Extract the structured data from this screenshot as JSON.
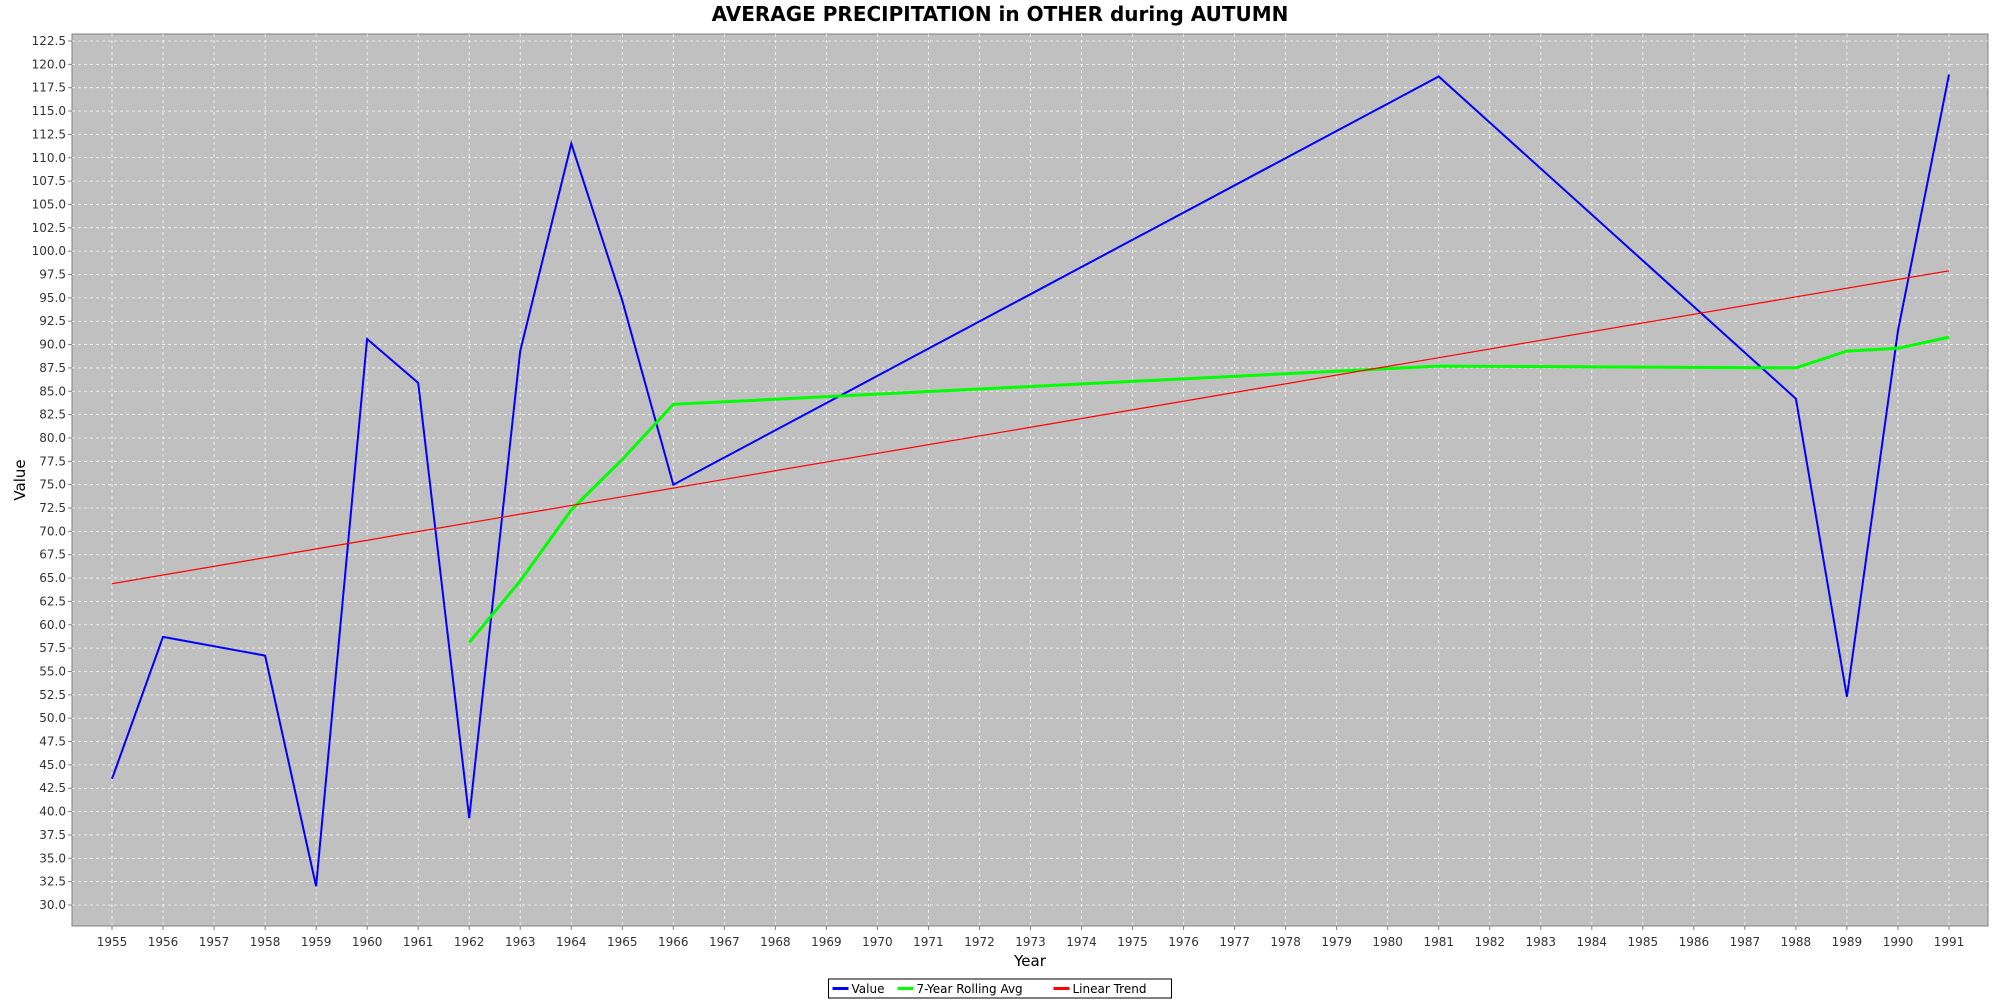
{
  "chart_data": {
    "type": "line",
    "title": "AVERAGE PRECIPITATION in OTHER during AUTUMN",
    "xlabel": "Year",
    "ylabel": "Value",
    "xlim": [
      1955,
      1991
    ],
    "ylim": [
      30.0,
      122.5
    ],
    "y_tick_step": 2.5,
    "grid": true,
    "legend_position": "bottom-center",
    "background_color": "#c0c0c0",
    "series": [
      {
        "name": "Value",
        "color": "#0000ff",
        "points": [
          [
            1955,
            43.5
          ],
          [
            1956,
            58.7
          ],
          [
            1958,
            56.7
          ],
          [
            1959,
            32.0
          ],
          [
            1960,
            90.6
          ],
          [
            1961,
            85.9
          ],
          [
            1962,
            39.3
          ],
          [
            1963,
            89.3
          ],
          [
            1964,
            111.5
          ],
          [
            1965,
            94.7
          ],
          [
            1966,
            75.0
          ],
          [
            1981,
            118.7
          ],
          [
            1988,
            84.2
          ],
          [
            1989,
            52.3
          ],
          [
            1990,
            91.5
          ],
          [
            1991,
            118.9
          ]
        ]
      },
      {
        "name": "7-Year Rolling Avg",
        "color": "#00ff00",
        "points": [
          [
            1962,
            58.1
          ],
          [
            1963,
            64.7
          ],
          [
            1964,
            72.3
          ],
          [
            1965,
            77.7
          ],
          [
            1966,
            83.6
          ],
          [
            1981,
            87.7
          ],
          [
            1988,
            87.5
          ],
          [
            1989,
            89.3
          ],
          [
            1990,
            89.6
          ],
          [
            1991,
            90.8
          ]
        ]
      },
      {
        "name": "Linear Trend",
        "color": "#ff0000",
        "points": [
          [
            1955,
            64.4
          ],
          [
            1991,
            97.9
          ]
        ]
      }
    ]
  }
}
